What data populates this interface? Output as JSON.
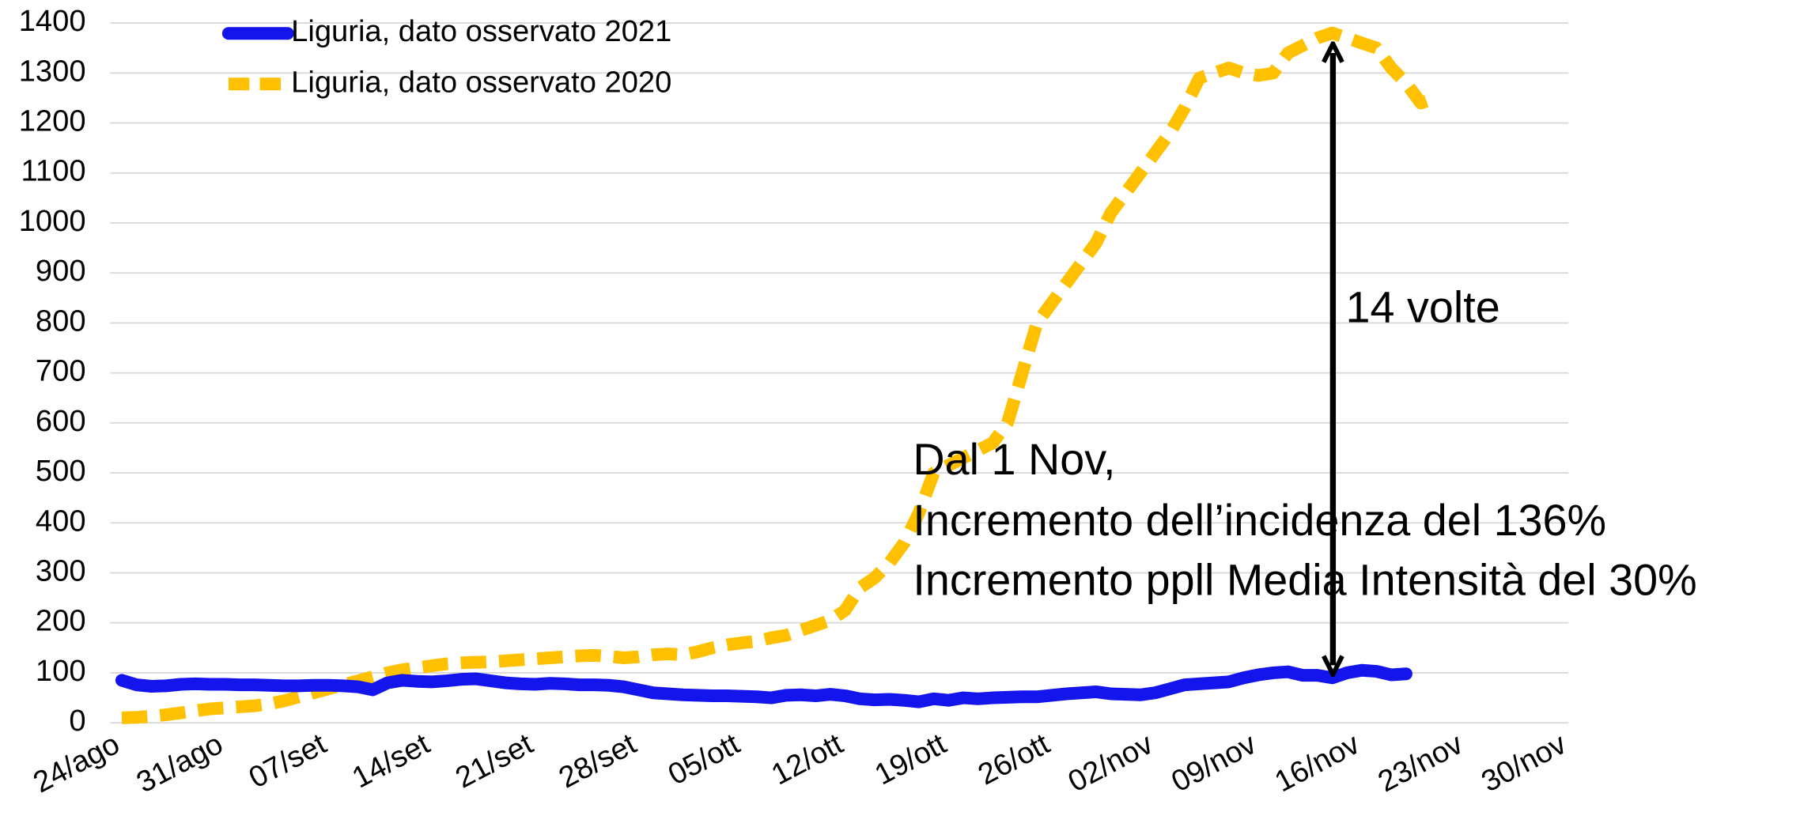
{
  "chart_data": {
    "type": "line",
    "categories": [
      "24/ago",
      null,
      null,
      null,
      null,
      null,
      null,
      "31/ago",
      null,
      null,
      null,
      null,
      null,
      null,
      "07/set",
      null,
      null,
      null,
      null,
      null,
      null,
      "14/set",
      null,
      null,
      null,
      null,
      null,
      null,
      "21/set",
      null,
      null,
      null,
      null,
      null,
      null,
      "28/set",
      null,
      null,
      null,
      null,
      null,
      null,
      "05/ott",
      null,
      null,
      null,
      null,
      null,
      null,
      "12/ott",
      null,
      null,
      null,
      null,
      null,
      null,
      "19/ott",
      null,
      null,
      null,
      null,
      null,
      null,
      "26/ott",
      null,
      null,
      null,
      null,
      null,
      null,
      "02/nov",
      null,
      null,
      null,
      null,
      null,
      null,
      "09/nov",
      null,
      null,
      null,
      null,
      null,
      null,
      "16/nov",
      null,
      null,
      null,
      null,
      null,
      null,
      "23/nov",
      null,
      null,
      null,
      null,
      null,
      null,
      "30/nov"
    ],
    "series": [
      {
        "name": "Liguria, dato osservato 2021",
        "color": "#1414ec",
        "line_style": "solid",
        "values": [
          85,
          76,
          73,
          74,
          77,
          78,
          77,
          77,
          76,
          76,
          75,
          74,
          74,
          75,
          75,
          74,
          72,
          66,
          80,
          85,
          83,
          82,
          84,
          87,
          88,
          84,
          80,
          78,
          77,
          79,
          78,
          76,
          76,
          75,
          72,
          66,
          60,
          58,
          56,
          55,
          54,
          54,
          53,
          52,
          50,
          55,
          56,
          54,
          57,
          54,
          48,
          46,
          47,
          45,
          42,
          48,
          45,
          50,
          48,
          50,
          51,
          52,
          52,
          55,
          58,
          60,
          62,
          58,
          57,
          56,
          60,
          68,
          76,
          78,
          80,
          82,
          90,
          96,
          100,
          102,
          95,
          95,
          90,
          100,
          105,
          103,
          96,
          98,
          null,
          null,
          null,
          null,
          null,
          null,
          null,
          null,
          null,
          null,
          null
        ]
      },
      {
        "name": "Liguria, dato osservato 2020",
        "color": "#ffc000",
        "line_style": "dashed",
        "values": [
          10,
          11,
          13,
          16,
          20,
          24,
          28,
          30,
          32,
          34,
          38,
          44,
          52,
          60,
          68,
          76,
          84,
          92,
          100,
          106,
          110,
          114,
          118,
          120,
          121,
          122,
          124,
          126,
          128,
          130,
          132,
          134,
          135,
          133,
          130,
          132,
          136,
          138,
          136,
          142,
          150,
          156,
          160,
          163,
          170,
          175,
          185,
          195,
          205,
          225,
          270,
          290,
          320,
          360,
          420,
          500,
          515,
          530,
          545,
          560,
          600,
          700,
          800,
          840,
          880,
          920,
          960,
          1020,
          1060,
          1100,
          1140,
          1180,
          1230,
          1290,
          1300,
          1310,
          1300,
          1295,
          1300,
          1340,
          1355,
          1370,
          1380,
          1370,
          1360,
          1350,
          1310,
          1280,
          1240,
          1250,
          null,
          null,
          null,
          null,
          null,
          null,
          null,
          null,
          null
        ]
      }
    ],
    "ylim": [
      0,
      1400
    ],
    "yticks": [
      0,
      100,
      200,
      300,
      400,
      500,
      600,
      700,
      800,
      900,
      1000,
      1100,
      1200,
      1300,
      1400
    ],
    "grid": true,
    "legend": "top-left",
    "annotations": [
      "14 volte",
      "Dal 1 Nov,",
      "Incremento dell’incidenza del 136%",
      "Incremento ppll Media Intensità del 30%"
    ]
  }
}
